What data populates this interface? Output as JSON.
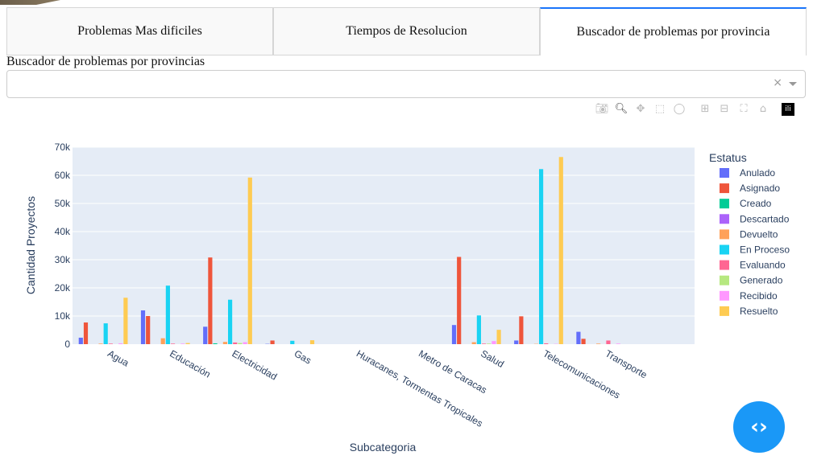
{
  "tabs": [
    {
      "label": "Problemas Mas dificiles"
    },
    {
      "label": "Tiempos de Resolucion"
    },
    {
      "label": "Buscador de problemas por provincia"
    }
  ],
  "search": {
    "label": "Buscador de problemas por provincias",
    "value": "",
    "clear": "×"
  },
  "modebar": [
    "camera-icon",
    "zoom-icon",
    "pan-icon",
    "box-select-icon",
    "lasso-icon",
    "zoom-in-icon",
    "zoom-out-icon",
    "autoscale-icon",
    "home-icon",
    "plotly-logo"
  ],
  "fab_label": "< >",
  "chart_data": {
    "type": "bar",
    "xlabel": "Subcategoria",
    "ylabel": "Cantidad Proyectos",
    "ylim": [
      0,
      70000
    ],
    "yticks": [
      0,
      10000,
      20000,
      30000,
      40000,
      50000,
      60000,
      70000
    ],
    "ytick_labels": [
      "0",
      "10k",
      "20k",
      "30k",
      "40k",
      "50k",
      "60k",
      "70k"
    ],
    "legend_title": "Estatus",
    "legend_position": "right",
    "categories": [
      "Agua",
      "Educación",
      "Electricidad",
      "Gas",
      "Huracanes, Tormentas Tropicales",
      "Metro de Caracas",
      "Salud",
      "Telecomunicaciones",
      "Transporte"
    ],
    "series": [
      {
        "name": "Anulado",
        "color": "#636efa",
        "values": [
          2300,
          12000,
          6200,
          100,
          0,
          0,
          6800,
          1300,
          4400
        ]
      },
      {
        "name": "Asignado",
        "color": "#ef553b",
        "values": [
          7700,
          10000,
          30800,
          1300,
          0,
          0,
          31000,
          9900,
          1900
        ]
      },
      {
        "name": "Creado",
        "color": "#00cc96",
        "values": [
          0,
          0,
          300,
          0,
          0,
          0,
          0,
          0,
          0
        ]
      },
      {
        "name": "Descartado",
        "color": "#ab63fa",
        "values": [
          0,
          0,
          0,
          0,
          0,
          0,
          0,
          0,
          0
        ]
      },
      {
        "name": "Devuelto",
        "color": "#ffa15a",
        "values": [
          200,
          2100,
          800,
          0,
          0,
          0,
          700,
          100,
          200
        ]
      },
      {
        "name": "En Proceso",
        "color": "#19d3f3",
        "values": [
          7400,
          20800,
          15800,
          1200,
          0,
          0,
          10200,
          62200,
          0
        ]
      },
      {
        "name": "Evaluando",
        "color": "#ff6692",
        "values": [
          200,
          200,
          600,
          0,
          0,
          0,
          200,
          300,
          1300
        ]
      },
      {
        "name": "Generado",
        "color": "#b6e880",
        "values": [
          0,
          0,
          400,
          0,
          0,
          0,
          200,
          0,
          0
        ]
      },
      {
        "name": "Recibido",
        "color": "#ff97ff",
        "values": [
          300,
          200,
          700,
          0,
          0,
          0,
          1100,
          100,
          200
        ]
      },
      {
        "name": "Resuelto",
        "color": "#fecb52",
        "values": [
          16500,
          400,
          59200,
          1400,
          0,
          0,
          5100,
          66500,
          0
        ]
      }
    ]
  }
}
